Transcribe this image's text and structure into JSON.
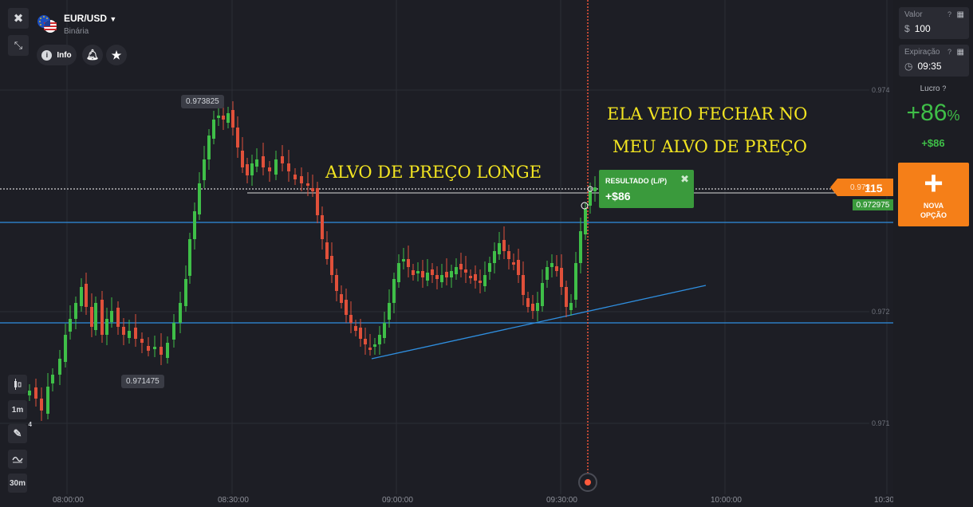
{
  "asset": {
    "name": "EUR/USD",
    "type": "Binária"
  },
  "top_actions": {
    "info_label": "Info"
  },
  "chart": {
    "y_axis_labels": [
      "0.974",
      "0.972",
      "0.971"
    ],
    "x_axis_labels": [
      "08:00:00",
      "08:30:00",
      "09:00:00",
      "09:30:00",
      "10:00:00",
      "10:30"
    ],
    "high_label": "0.973825",
    "low_label": "0.971475",
    "annotations": {
      "line1": "ELA VEIO FECHAR NO",
      "line2": "MEU ALVO DE PREÇO",
      "line3": "ALVO DE PREÇO LONGE"
    },
    "current_price_prefix": "0.973",
    "current_price_suffix": "115",
    "target_price": "0.972975",
    "colors": {
      "bull": "#3fbf48",
      "bear": "#e0503a",
      "trendline": "#2f8fe0",
      "expiry": "#ff5a3c"
    }
  },
  "result_box": {
    "title": "RESULTADO (L/P)",
    "value": "+$86"
  },
  "toolbar": {
    "timeframe": "1m",
    "drawing_count": "4",
    "interval": "30m"
  },
  "panel": {
    "value_label": "Valor",
    "value_currency": "$",
    "value": "100",
    "expiry_label": "Expiração",
    "expiry": "09:35",
    "profit_label": "Lucro",
    "profit_pct_value": "+86",
    "profit_pct_sign": "%",
    "profit_amount": "+$86",
    "new_option_line1": "NOVA",
    "new_option_line2": "OPÇÃO"
  }
}
